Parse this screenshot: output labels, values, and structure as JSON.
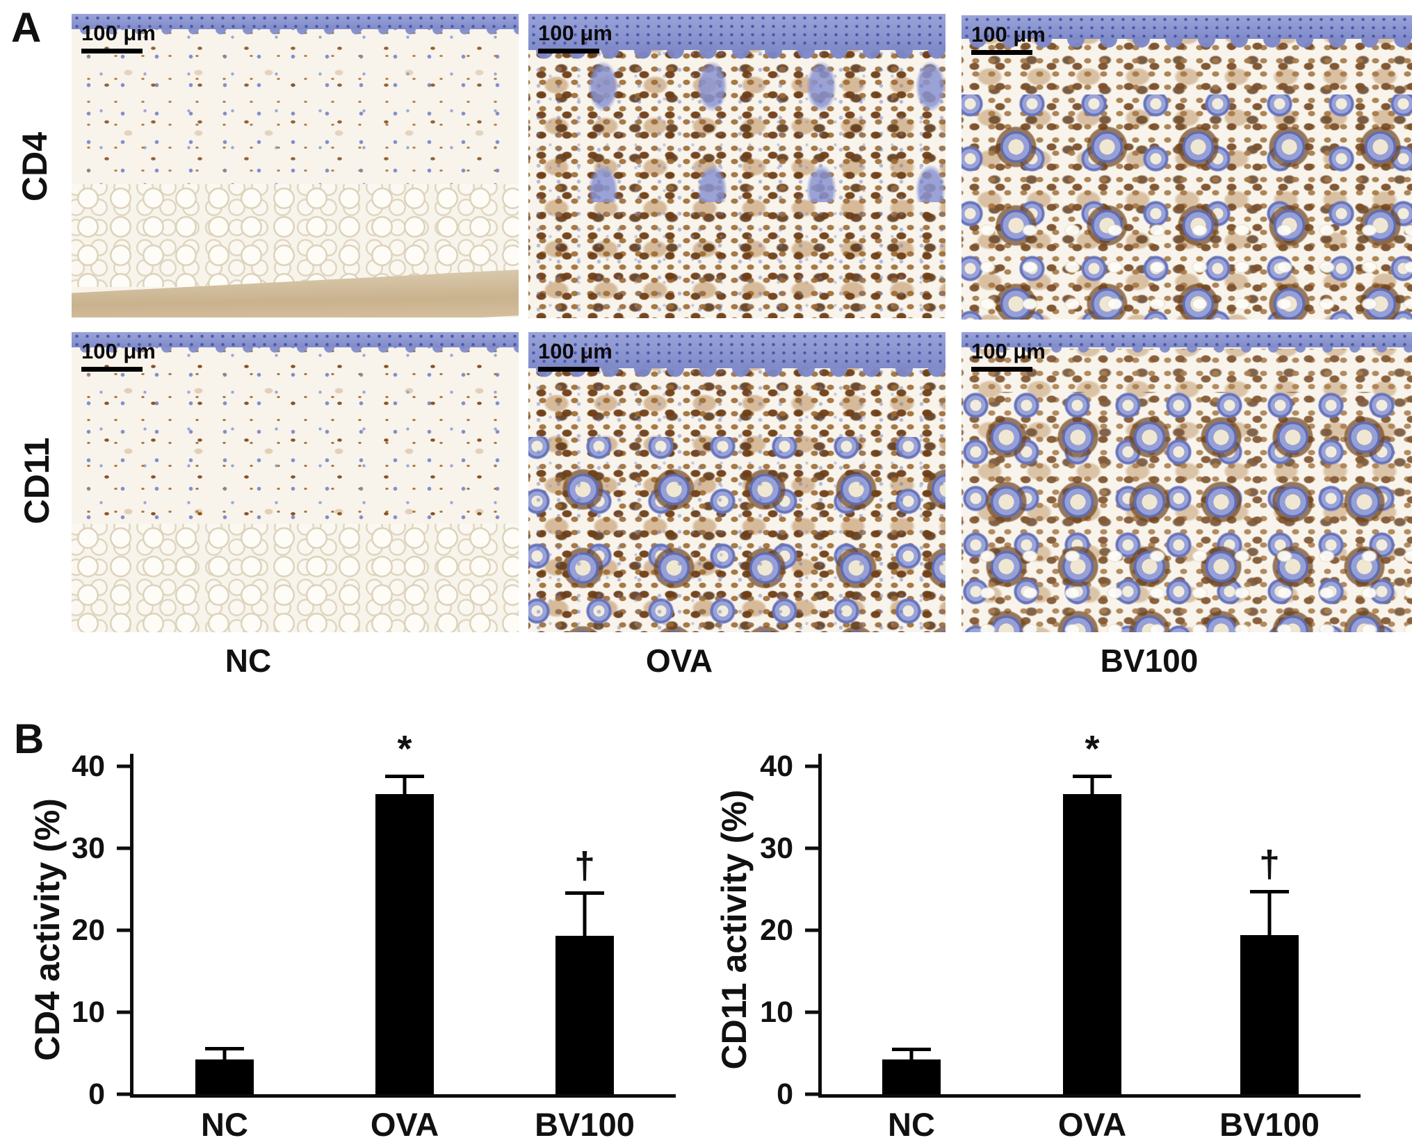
{
  "figure": {
    "panel_a_label": "A",
    "panel_b_label": "B",
    "scale_bar_label": "100 μm",
    "row_labels": [
      "CD4",
      "CD11"
    ],
    "column_labels": [
      "NC",
      "OVA",
      "BV100"
    ],
    "stain_colors": {
      "hematoxylin_blue": "#7c87c8",
      "dab_brown": "#8a5322",
      "background_cream": "#f8f4ec",
      "bar_black": "#000000"
    }
  },
  "chart_data": [
    {
      "type": "bar",
      "title": "",
      "categories": [
        "NC",
        "OVA",
        "BV100"
      ],
      "values": [
        4.2,
        36.6,
        19.3
      ],
      "errors": [
        1.5,
        2.4,
        5.4
      ],
      "sig": [
        "",
        "*",
        "†"
      ],
      "ylabel": "CD4 activity (%)",
      "ylim": [
        0,
        40
      ],
      "yticks": [
        0,
        10,
        20,
        30,
        40
      ],
      "bar_color": "#000000",
      "grid": false,
      "legend": "none"
    },
    {
      "type": "bar",
      "title": "",
      "categories": [
        "NC",
        "OVA",
        "BV100"
      ],
      "values": [
        4.2,
        36.6,
        19.4
      ],
      "errors": [
        1.4,
        2.4,
        5.5
      ],
      "sig": [
        "",
        "*",
        "†"
      ],
      "ylabel": "CD11 activity (%)",
      "ylim": [
        0,
        40
      ],
      "yticks": [
        0,
        10,
        20,
        30,
        40
      ],
      "bar_color": "#000000",
      "grid": false,
      "legend": "none"
    }
  ]
}
